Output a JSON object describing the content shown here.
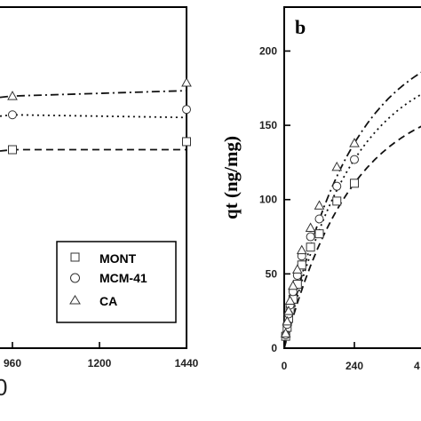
{
  "chart_data": [
    {
      "type": "scatter",
      "panel_label": "",
      "xlabel": "",
      "ylabel": "",
      "x_ticks": [
        "960",
        "1200",
        "1440"
      ],
      "bottom_partial_label": "0",
      "legend": {
        "position": "bottom-right",
        "entries": [
          "MONT",
          "MCM-41",
          "CA"
        ]
      },
      "series": [
        {
          "name": "MONT",
          "marker": "square",
          "line_style": "dashed",
          "x": [
            960,
            1440
          ],
          "y": [
            148,
            154
          ]
        },
        {
          "name": "MCM-41",
          "marker": "circle",
          "line_style": "dotted",
          "x": [
            960,
            1440
          ],
          "y": [
            174,
            178
          ]
        },
        {
          "name": "CA",
          "marker": "triangle",
          "line_style": "dash-dot",
          "x": [
            960,
            1440
          ],
          "y": [
            188,
            198
          ]
        }
      ]
    },
    {
      "type": "scatter",
      "panel_label": "b",
      "xlabel": "",
      "ylabel": "qt (ng/mg)",
      "ylim": [
        0,
        220
      ],
      "xlim": [
        0,
        500
      ],
      "y_ticks": [
        "0",
        "50",
        "100",
        "150",
        "200"
      ],
      "x_ticks": [
        "0",
        "240"
      ],
      "x_partial_label": "4",
      "series": [
        {
          "name": "MONT",
          "marker": "square",
          "line_style": "dashed",
          "x": [
            5,
            10,
            15,
            20,
            30,
            45,
            60,
            90,
            120,
            180,
            240
          ],
          "y": [
            8,
            14,
            20,
            26,
            33,
            43,
            56,
            68,
            77,
            99,
            111
          ]
        },
        {
          "name": "MCM-41",
          "marker": "circle",
          "line_style": "dotted",
          "x": [
            5,
            10,
            15,
            20,
            30,
            45,
            60,
            90,
            120,
            180,
            240
          ],
          "y": [
            9,
            16,
            23,
            29,
            38,
            49,
            62,
            75,
            87,
            109,
            127
          ]
        },
        {
          "name": "CA",
          "marker": "triangle",
          "line_style": "dash-dot",
          "x": [
            5,
            10,
            15,
            20,
            30,
            45,
            60,
            90,
            120,
            180,
            240
          ],
          "y": [
            10,
            18,
            25,
            32,
            42,
            53,
            66,
            81,
            96,
            122,
            138
          ]
        }
      ]
    }
  ]
}
